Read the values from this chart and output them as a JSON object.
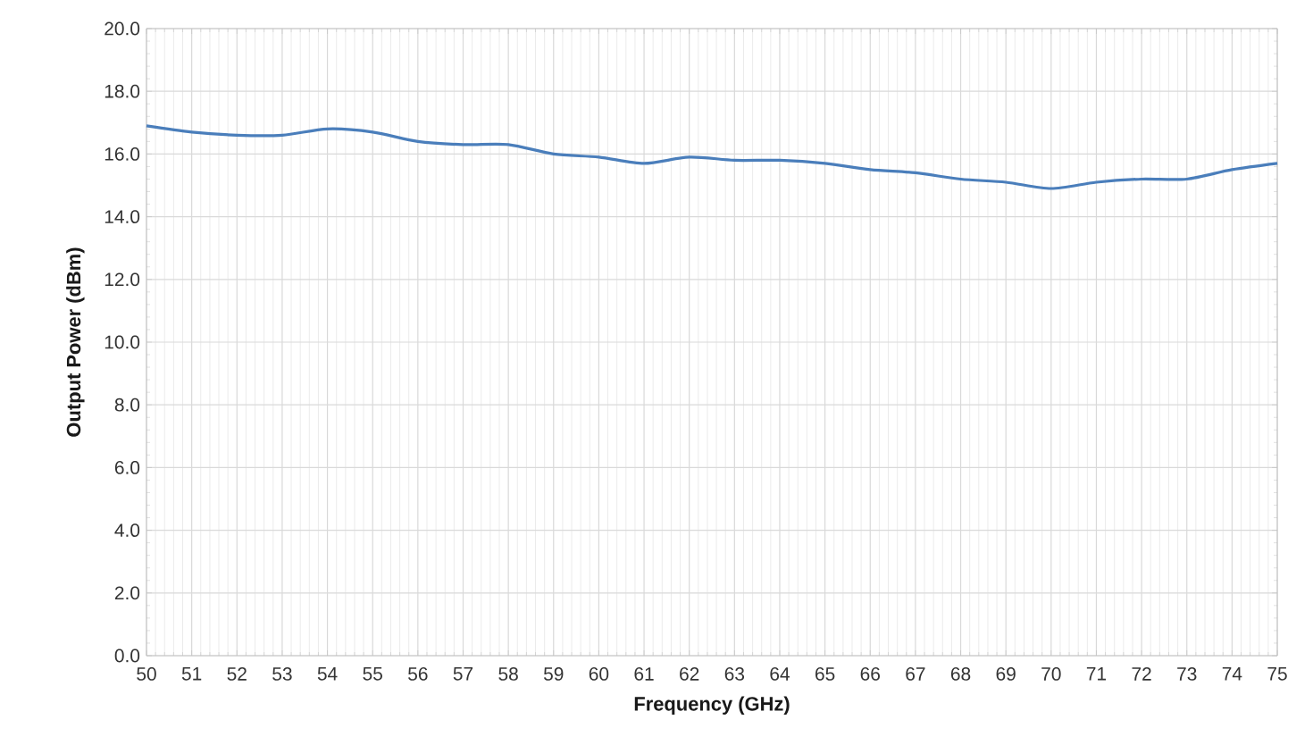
{
  "chart_data": {
    "type": "line",
    "xlabel": "Frequency (GHz)",
    "ylabel": "Output Power (dBm)",
    "x": [
      50,
      51,
      52,
      53,
      54,
      55,
      56,
      57,
      58,
      59,
      60,
      61,
      62,
      63,
      64,
      65,
      66,
      67,
      68,
      69,
      70,
      71,
      72,
      73,
      74,
      75
    ],
    "values": [
      16.9,
      16.7,
      16.6,
      16.6,
      16.8,
      16.7,
      16.4,
      16.3,
      16.3,
      16.0,
      15.9,
      15.7,
      15.9,
      15.8,
      15.8,
      15.7,
      15.5,
      15.4,
      15.2,
      15.1,
      14.9,
      15.1,
      15.2,
      15.2,
      15.5,
      15.7
    ],
    "color": "#4a7ebb",
    "xlim": [
      50,
      75
    ],
    "ylim": [
      0,
      20
    ],
    "xticks": [
      50,
      51,
      52,
      53,
      54,
      55,
      56,
      57,
      58,
      59,
      60,
      61,
      62,
      63,
      64,
      65,
      66,
      67,
      68,
      69,
      70,
      71,
      72,
      73,
      74,
      75
    ],
    "yticks": [
      {
        "value": 0,
        "label": "0.0"
      },
      {
        "value": 2,
        "label": "2.0"
      },
      {
        "value": 4,
        "label": "4.0"
      },
      {
        "value": 6,
        "label": "6.0"
      },
      {
        "value": 8,
        "label": "8.0"
      },
      {
        "value": 10,
        "label": "10.0"
      },
      {
        "value": 12,
        "label": "12.0"
      },
      {
        "value": 14,
        "label": "14.0"
      },
      {
        "value": 16,
        "label": "16.0"
      },
      {
        "value": 18,
        "label": "18.0"
      },
      {
        "value": 20,
        "label": "20.0"
      }
    ],
    "grid": true
  }
}
